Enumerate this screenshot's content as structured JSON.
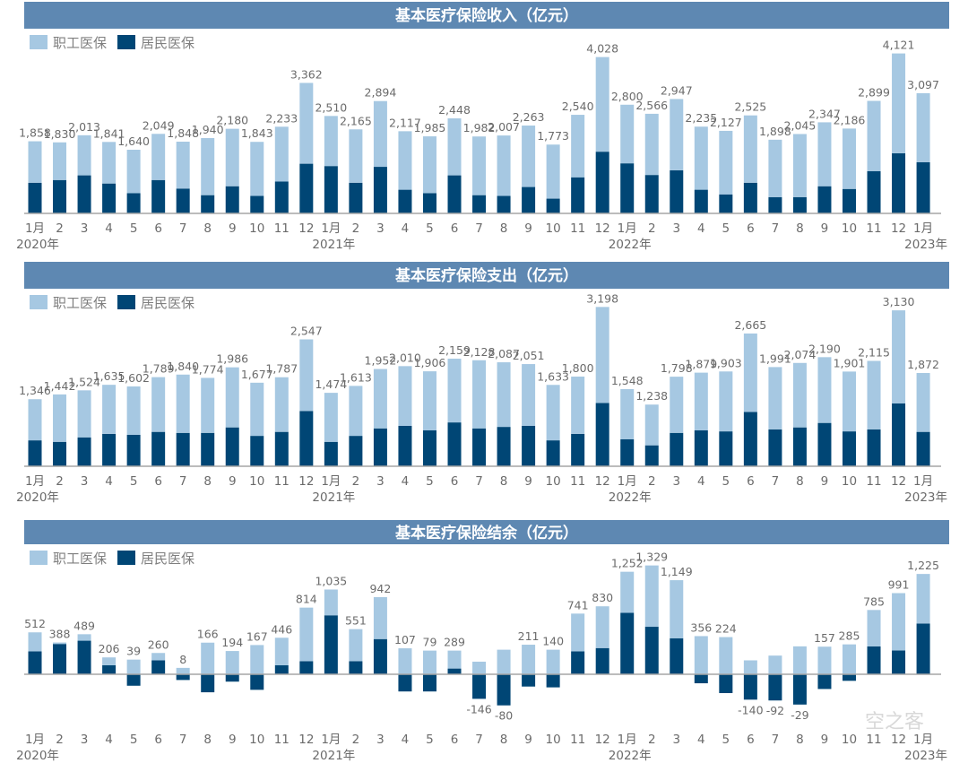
{
  "legend": {
    "employee": "职工医保",
    "resident": "居民医保"
  },
  "colors": {
    "header": "#5e88b2",
    "employee": "#a6c8e2",
    "resident": "#004675",
    "text": "#6b6b6b",
    "axis": "#a6a6a6"
  },
  "watermark": "空之客",
  "chart_data": [
    {
      "type": "bar",
      "stacked": true,
      "title": "基本医疗保险收入（亿元）",
      "unit": "亿元",
      "categories": [
        "1月",
        "2",
        "3",
        "4",
        "5",
        "6",
        "7",
        "8",
        "9",
        "10",
        "11",
        "12",
        "1月",
        "2",
        "3",
        "4",
        "5",
        "6",
        "7",
        "8",
        "9",
        "10",
        "11",
        "12",
        "1月",
        "2",
        "3",
        "4",
        "5",
        "6",
        "7",
        "8",
        "9",
        "10",
        "11",
        "12",
        "1月"
      ],
      "year_labels": [
        {
          "index": 0,
          "label": "2020年"
        },
        {
          "index": 12,
          "label": "2021年"
        },
        {
          "index": 24,
          "label": "2022年"
        },
        {
          "index": 36,
          "label": "2023年"
        }
      ],
      "totals": [
        1858,
        1830,
        2013,
        1841,
        1640,
        2049,
        1848,
        1940,
        2180,
        1843,
        2233,
        3362,
        2510,
        2165,
        2894,
        2117,
        1985,
        2448,
        1982,
        2007,
        2263,
        1773,
        2540,
        4028,
        2800,
        2566,
        2947,
        2235,
        2127,
        2525,
        1898,
        2045,
        2347,
        2186,
        2899,
        4121,
        3097
      ],
      "series": [
        {
          "name": "居民医保",
          "values": [
            790,
            860,
            980,
            770,
            520,
            860,
            640,
            470,
            700,
            450,
            820,
            1280,
            1220,
            790,
            1200,
            610,
            520,
            980,
            470,
            450,
            680,
            380,
            930,
            1590,
            1290,
            990,
            1110,
            610,
            490,
            790,
            420,
            420,
            700,
            630,
            1090,
            1550,
            1320
          ]
        },
        {
          "name": "职工医保",
          "values": "totals minus 居民医保"
        }
      ],
      "legend_position": "top-left"
    },
    {
      "type": "bar",
      "stacked": true,
      "title": "基本医疗保险支出（亿元）",
      "unit": "亿元",
      "categories": [
        "1月",
        "2",
        "3",
        "4",
        "5",
        "6",
        "7",
        "8",
        "9",
        "10",
        "11",
        "12",
        "1月",
        "2",
        "3",
        "4",
        "5",
        "6",
        "7",
        "8",
        "9",
        "10",
        "11",
        "12",
        "1月",
        "2",
        "3",
        "4",
        "5",
        "6",
        "7",
        "8",
        "9",
        "10",
        "11",
        "12",
        "1月"
      ],
      "year_labels": [
        {
          "index": 0,
          "label": "2020年"
        },
        {
          "index": 12,
          "label": "2021年"
        },
        {
          "index": 24,
          "label": "2022年"
        },
        {
          "index": 36,
          "label": "2023年"
        }
      ],
      "totals": [
        1346,
        1442,
        1524,
        1635,
        1602,
        1789,
        1840,
        1774,
        1986,
        1677,
        1787,
        2547,
        1474,
        1613,
        1952,
        2010,
        1906,
        2159,
        2128,
        2087,
        2051,
        1633,
        1800,
        3198,
        1548,
        1238,
        1798,
        1879,
        1903,
        2665,
        1991,
        2074,
        2190,
        1901,
        2115,
        3130,
        1872
      ],
      "series": [
        {
          "name": "居民医保",
          "values": [
            520,
            490,
            580,
            650,
            630,
            690,
            670,
            670,
            780,
            610,
            690,
            1110,
            490,
            610,
            760,
            810,
            720,
            880,
            760,
            790,
            810,
            520,
            650,
            1270,
            540,
            420,
            670,
            720,
            700,
            1090,
            740,
            780,
            870,
            700,
            740,
            1260,
            690
          ]
        },
        {
          "name": "职工医保",
          "values": "totals minus 居民医保"
        }
      ],
      "legend_position": "top-left"
    },
    {
      "type": "bar",
      "stacked": true,
      "title": "基本医疗保险结余（亿元）",
      "unit": "亿元",
      "categories": [
        "1月",
        "2",
        "3",
        "4",
        "5",
        "6",
        "7",
        "8",
        "9",
        "10",
        "11",
        "12",
        "1月",
        "2",
        "3",
        "4",
        "5",
        "6",
        "7",
        "8",
        "9",
        "10",
        "11",
        "12",
        "1月",
        "2",
        "3",
        "4",
        "5",
        "6",
        "7",
        "8",
        "9",
        "10",
        "11",
        "12",
        "1月"
      ],
      "year_labels": [
        {
          "index": 0,
          "label": "2020年"
        },
        {
          "index": 12,
          "label": "2021年"
        },
        {
          "index": 24,
          "label": "2022年"
        },
        {
          "index": 36,
          "label": "2023年"
        }
      ],
      "totals": [
        512,
        388,
        489,
        206,
        39,
        260,
        8,
        166,
        194,
        167,
        446,
        814,
        1035,
        551,
        942,
        107,
        79,
        289,
        -146,
        -80,
        211,
        140,
        741,
        830,
        1252,
        1329,
        1149,
        356,
        224,
        -140,
        -92,
        -29,
        157,
        285,
        785,
        991,
        1225
      ],
      "series": [
        {
          "name": "居民医保",
          "values": [
            280,
            370,
            410,
            110,
            -140,
            170,
            -70,
            -220,
            -90,
            -190,
            110,
            160,
            720,
            160,
            430,
            -210,
            -210,
            70,
            -300,
            -380,
            -150,
            -160,
            280,
            320,
            750,
            580,
            440,
            -110,
            -230,
            -310,
            -320,
            -370,
            -180,
            -80,
            340,
            290,
            620
          ]
        },
        {
          "name": "职工医保",
          "values": "totals minus 居民医保"
        }
      ],
      "legend_position": "top-left"
    }
  ]
}
